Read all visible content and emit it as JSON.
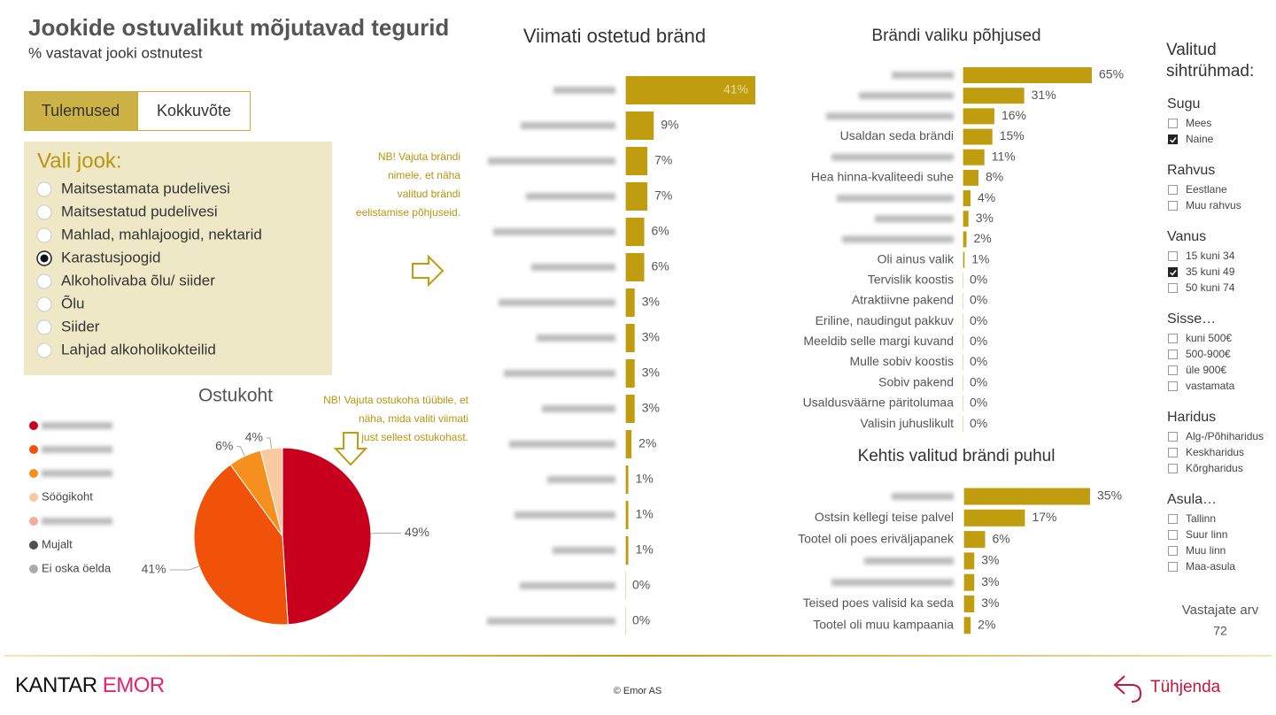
{
  "header": {
    "title": "Jookide ostuvalikut mõjutavad tegurid",
    "subtitle": "% vastavat jooki ostnutest"
  },
  "tabs": {
    "items": [
      "Tulemused",
      "Kokkuvõte"
    ],
    "active": 0
  },
  "drink_selector": {
    "title": "Vali jook:",
    "options": [
      "Maitsestamata pudelivesi",
      "Maitsestatud pudelivesi",
      "Mahlad, mahlajoogid, nektarid",
      "Karastusjoogid",
      "Alkoholivaba õlu/ siider",
      "Õlu",
      "Siider",
      "Lahjad alkoholikokteilid"
    ],
    "selected": 3
  },
  "notes": [
    "NB! Vajuta brändi nimele, et näha valitud brändi eelistamise põhjuseid.",
    "NB! Vajuta ostukoha tüübile, et näha, mida valiti viimati just sellest ostukohast."
  ],
  "chart_data": [
    {
      "type": "hbar",
      "title": "Viimati ostetud bränd",
      "color": "#c09c0f",
      "categories": [
        null,
        null,
        null,
        null,
        null,
        null,
        null,
        null,
        null,
        null,
        null,
        null,
        null,
        null,
        null,
        null
      ],
      "values": [
        41,
        9,
        7,
        7,
        6,
        6,
        3,
        3,
        3,
        3,
        2,
        1,
        1,
        1,
        0,
        0
      ],
      "value_labels": [
        "41%",
        "9%",
        "7%",
        "7%",
        "6%",
        "6%",
        "3%",
        "3%",
        "3%",
        "3%",
        "2%",
        "1%",
        "1%",
        "1%",
        "0%",
        "0%"
      ]
    },
    {
      "type": "hbar",
      "title": "Brändi valiku põhjused",
      "color": "#c09c0f",
      "categories": [
        null,
        null,
        null,
        "Usaldan seda brändi",
        null,
        "Hea hinna-kvaliteedi suhe",
        null,
        null,
        null,
        "Oli ainus valik",
        "Tervislik koostis",
        "Atraktiivne pakend",
        "Eriline, naudingut pakkuv",
        "Meeldib selle margi kuvand",
        "Mulle sobiv koostis",
        "Sobiv pakend",
        "Usaldusväärne päritolumaa",
        "Valisin juhuslikult"
      ],
      "values": [
        65,
        31,
        16,
        15,
        11,
        8,
        4,
        3,
        2,
        1,
        0,
        0,
        0,
        0,
        0,
        0,
        0,
        0
      ],
      "value_labels": [
        "65%",
        "31%",
        "16%",
        "15%",
        "11%",
        "8%",
        "4%",
        "3%",
        "2%",
        "1%",
        "0%",
        "0%",
        "0%",
        "0%",
        "0%",
        "0%",
        "0%",
        "0%"
      ]
    },
    {
      "type": "hbar",
      "title": "Kehtis valitud brändi puhul",
      "color": "#c09c0f",
      "categories": [
        null,
        "Ostsin kellegi teise palvel",
        "Tootel oli poes eriväljapanek",
        null,
        null,
        "Teised poes valisid ka seda",
        "Tootel oli muu kampaania"
      ],
      "values": [
        35,
        17,
        6,
        3,
        3,
        3,
        2
      ],
      "value_labels": [
        "35%",
        "17%",
        "6%",
        "3%",
        "3%",
        "3%",
        "2%"
      ]
    },
    {
      "type": "pie",
      "title": "Ostukoht",
      "categories": [
        null,
        null,
        null,
        "Söögikoht",
        null,
        "Mujalt",
        "Ei oska öelda"
      ],
      "values": [
        49,
        41,
        6,
        4,
        0,
        0,
        0
      ],
      "value_labels": [
        "49%",
        "41%",
        "6%",
        "4%",
        null,
        null,
        null
      ],
      "colors": [
        "#c8001e",
        "#ef5208",
        "#f5901e",
        "#f9caa0",
        "#f4ab98",
        "#505050",
        "#ababab"
      ]
    }
  ],
  "filters": {
    "title": [
      "Valitud",
      "sihtrühmad:"
    ],
    "groups": [
      {
        "name": "Sugu",
        "options": [
          {
            "label": "Mees",
            "checked": false
          },
          {
            "label": "Naine",
            "checked": true
          }
        ]
      },
      {
        "name": "Rahvus",
        "options": [
          {
            "label": "Eestlane",
            "checked": false
          },
          {
            "label": "Muu rahvus",
            "checked": false
          }
        ]
      },
      {
        "name": "Vanus",
        "options": [
          {
            "label": "15 kuni 34",
            "checked": false
          },
          {
            "label": "35 kuni 49",
            "checked": true
          },
          {
            "label": "50 kuni 74",
            "checked": false
          }
        ]
      },
      {
        "name": "Sisse…",
        "options": [
          {
            "label": "kuni 500€",
            "checked": false
          },
          {
            "label": "500-900€",
            "checked": false
          },
          {
            "label": "üle 900€",
            "checked": false
          },
          {
            "label": "vastamata",
            "checked": false
          }
        ]
      },
      {
        "name": "Haridus",
        "options": [
          {
            "label": "Alg-/Põhiharidus",
            "checked": false
          },
          {
            "label": "Keskharidus",
            "checked": false
          },
          {
            "label": "Kõrgharidus",
            "checked": false
          }
        ]
      },
      {
        "name": "Asula…",
        "options": [
          {
            "label": "Tallinn",
            "checked": false
          },
          {
            "label": "Suur linn",
            "checked": false
          },
          {
            "label": "Muu linn",
            "checked": false
          },
          {
            "label": "Maa-asula",
            "checked": false
          }
        ]
      }
    ]
  },
  "respondents": {
    "label": "Vastajate arv",
    "value": 72
  },
  "footer": {
    "logo": [
      "KANTAR",
      "EMOR"
    ],
    "copyright": "© Emor AS",
    "clear": "Tühjenda"
  }
}
